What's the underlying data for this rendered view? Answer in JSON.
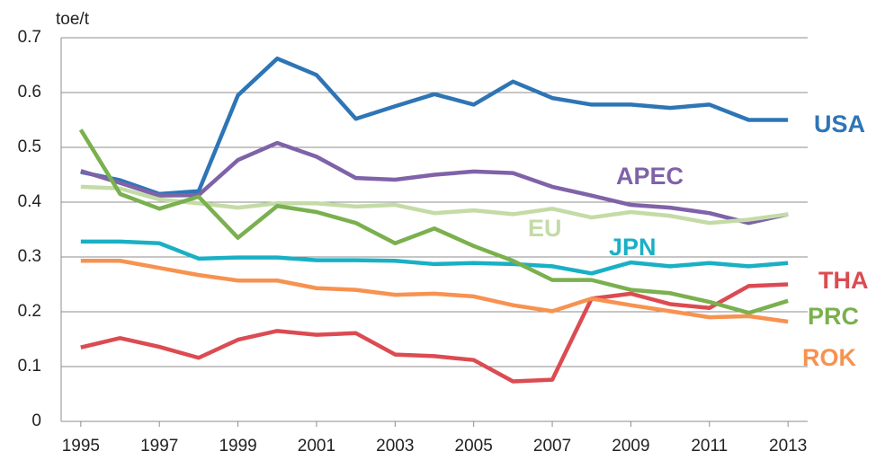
{
  "chart_data": {
    "type": "line",
    "y_label": "toe/t",
    "x": [
      1995,
      1996,
      1997,
      1998,
      1999,
      2000,
      2001,
      2002,
      2003,
      2004,
      2005,
      2006,
      2007,
      2008,
      2009,
      2010,
      2011,
      2012,
      2013
    ],
    "xlim": [
      1994.5,
      2013.5
    ],
    "xticks": [
      1995,
      1997,
      1999,
      2001,
      2003,
      2005,
      2007,
      2009,
      2011,
      2013
    ],
    "ylim": [
      0,
      0.7
    ],
    "yticks": [
      0,
      0.1,
      0.2,
      0.3,
      0.4,
      0.5,
      0.6,
      0.7
    ],
    "grid": true,
    "series": [
      {
        "name": "USA",
        "color": "#2e75b6",
        "values": [
          0.455,
          0.44,
          0.415,
          0.42,
          0.595,
          0.662,
          0.632,
          0.552,
          0.575,
          0.597,
          0.578,
          0.62,
          0.59,
          0.578,
          0.578,
          0.572,
          0.578,
          0.55,
          0.55
        ]
      },
      {
        "name": "APEC",
        "color": "#7f62a8",
        "values": [
          0.457,
          0.435,
          0.412,
          0.413,
          0.477,
          0.508,
          0.483,
          0.444,
          0.441,
          0.45,
          0.456,
          0.453,
          0.428,
          0.412,
          0.395,
          0.39,
          0.38,
          0.362,
          0.378
        ]
      },
      {
        "name": "EU",
        "color": "#c4dba6",
        "values": [
          0.428,
          0.425,
          0.405,
          0.398,
          0.39,
          0.398,
          0.398,
          0.392,
          0.395,
          0.38,
          0.385,
          0.378,
          0.388,
          0.372,
          0.382,
          0.375,
          0.362,
          0.368,
          0.378
        ]
      },
      {
        "name": "JPN",
        "color": "#1ab0c4",
        "values": [
          0.328,
          0.328,
          0.325,
          0.297,
          0.299,
          0.299,
          0.294,
          0.294,
          0.293,
          0.287,
          0.289,
          0.287,
          0.283,
          0.27,
          0.29,
          0.283,
          0.289,
          0.283,
          0.289
        ]
      },
      {
        "name": "THA",
        "color": "#dc4b52",
        "values": [
          0.135,
          0.152,
          0.136,
          0.116,
          0.149,
          0.165,
          0.158,
          0.161,
          0.122,
          0.119,
          0.112,
          0.073,
          0.076,
          0.224,
          0.233,
          0.214,
          0.207,
          0.247,
          0.25
        ]
      },
      {
        "name": "PRC",
        "color": "#7ab04e",
        "values": [
          0.532,
          0.415,
          0.388,
          0.41,
          0.335,
          0.393,
          0.382,
          0.362,
          0.325,
          0.352,
          0.32,
          0.293,
          0.258,
          0.258,
          0.24,
          0.234,
          0.218,
          0.198,
          0.22
        ]
      },
      {
        "name": "ROK",
        "color": "#f79250",
        "values": [
          0.293,
          0.293,
          0.28,
          0.267,
          0.257,
          0.257,
          0.243,
          0.24,
          0.231,
          0.233,
          0.228,
          0.212,
          0.201,
          0.224,
          0.212,
          0.201,
          0.19,
          0.192,
          0.182
        ]
      }
    ]
  }
}
